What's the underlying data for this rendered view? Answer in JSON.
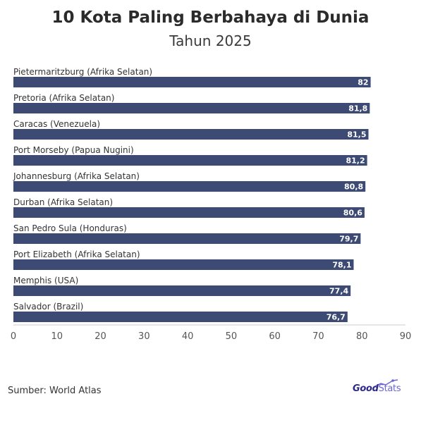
{
  "chart_data": {
    "type": "bar",
    "orientation": "horizontal",
    "title": "10 Kota Paling Berbahaya di Dunia",
    "subtitle": "Tahun 2025",
    "categories": [
      "Pietermaritzburg (Afrika Selatan)",
      "Pretoria (Afrika Selatan)",
      "Caracas (Venezuela)",
      "Port Morseby (Papua Nugini)",
      "Johannesburg (Afrika Selatan)",
      "Durban (Afrika Selatan)",
      "San Pedro Sula (Honduras)",
      "Port Elizabeth (Afrika Selatan)",
      "Memphis (USA)",
      "Salvador (Brazil)"
    ],
    "values": [
      82,
      81.8,
      81.5,
      81.2,
      80.8,
      80.6,
      79.7,
      78.1,
      77.4,
      76.7
    ],
    "value_labels": [
      "82",
      "81,8",
      "81,5",
      "81,2",
      "80,8",
      "80,6",
      "79,7",
      "78,1",
      "77,4",
      "76,7"
    ],
    "xlim": [
      0,
      90
    ],
    "xticks": [
      "0",
      "10",
      "20",
      "30",
      "40",
      "50",
      "60",
      "70",
      "80",
      "90"
    ],
    "xlabel": "",
    "ylabel": "",
    "grid": false,
    "bar_color": "#3d4a73"
  },
  "footer": {
    "source": "Sumber: World Atlas",
    "brand_part1": "Good",
    "brand_part2": "Stats"
  }
}
